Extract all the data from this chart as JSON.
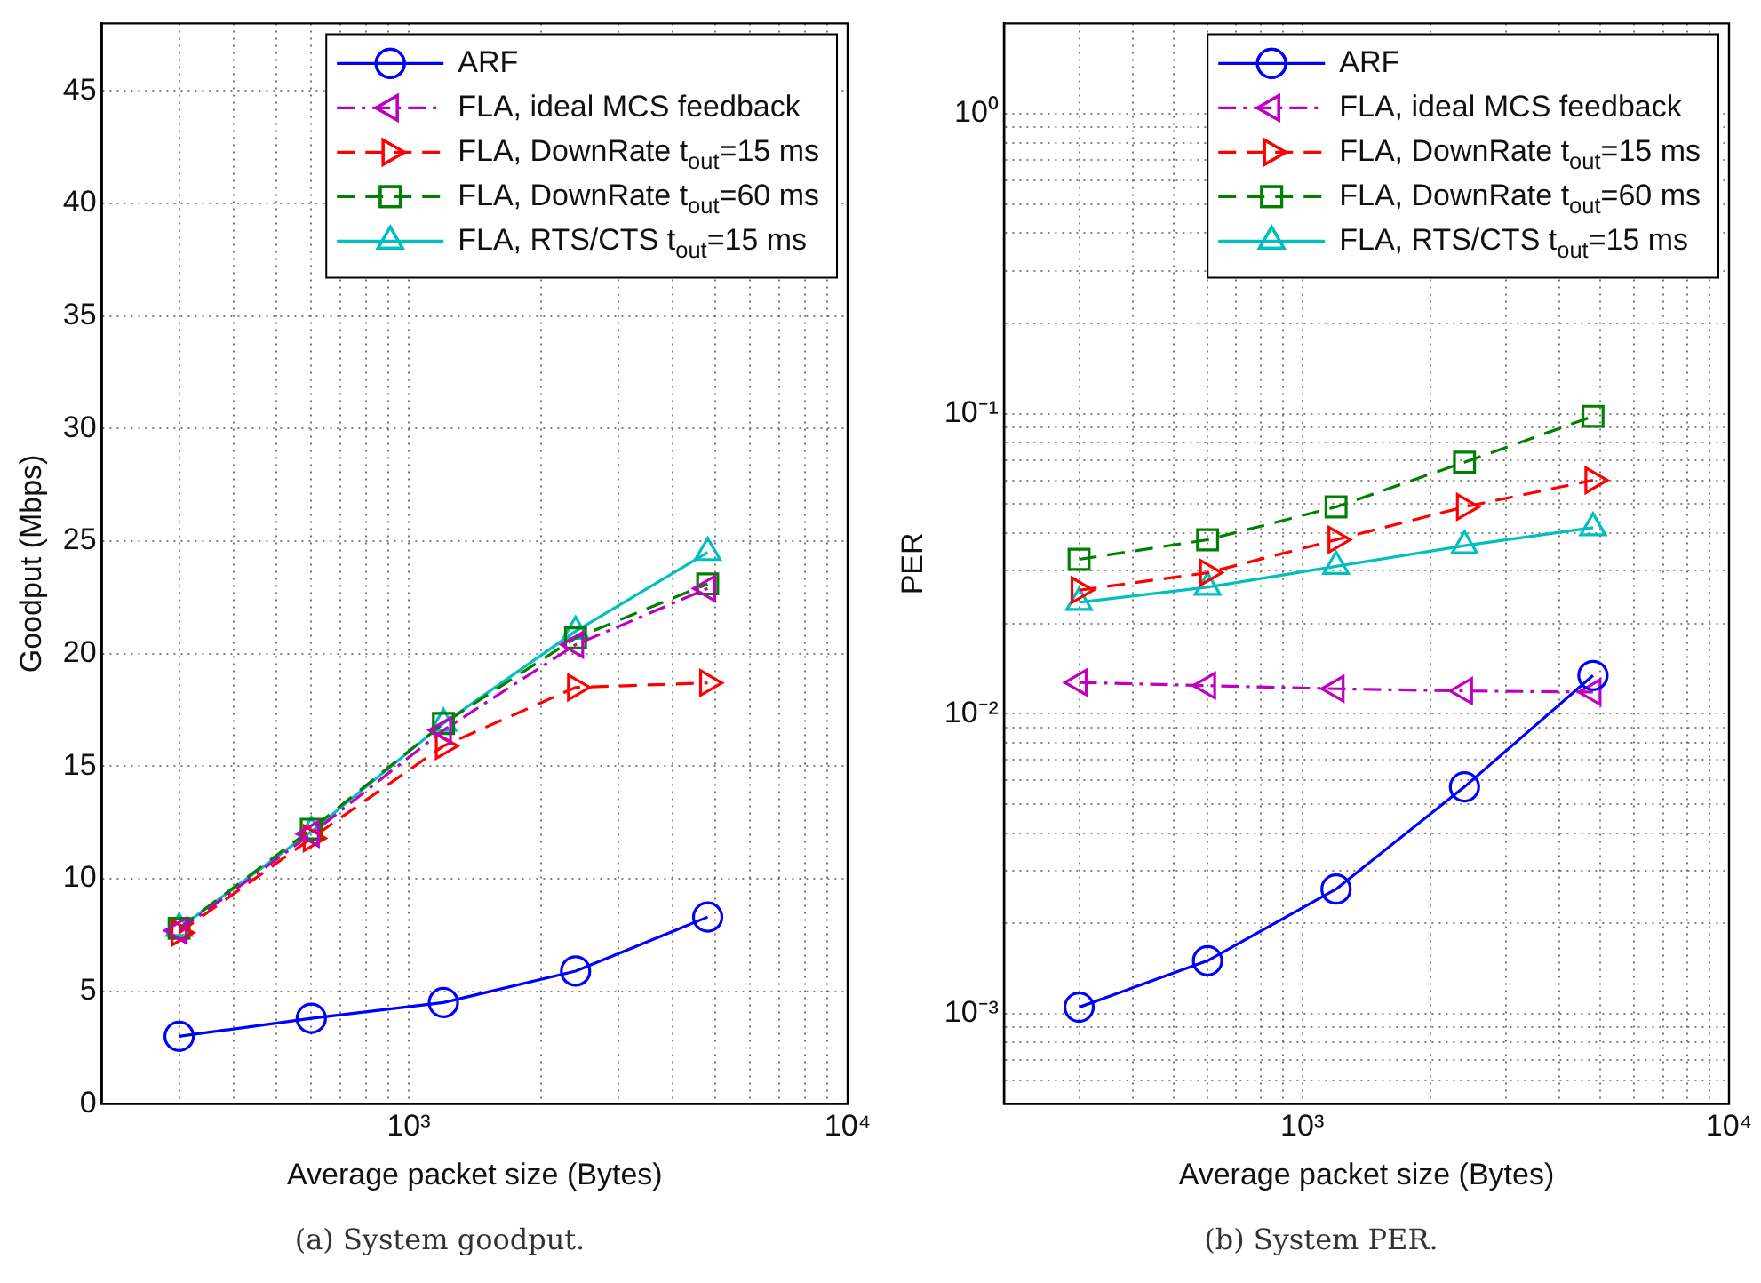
{
  "chart_data": [
    {
      "type": "line",
      "xlabel": "Average packet size (Bytes)",
      "ylabel": "Goodput (Mbps)",
      "annotations": [
        "(a) System goodput."
      ],
      "log": "x",
      "grid": true,
      "legend": "top right",
      "x": [
        300,
        600,
        1200,
        2400,
        4800
      ],
      "xlim": [
        200,
        10000
      ],
      "xticks": [
        {
          "value": 300,
          "label": null
        },
        {
          "value": 400,
          "label": null
        },
        {
          "value": 500,
          "label": null
        },
        {
          "value": 600,
          "label": null
        },
        {
          "value": 700,
          "label": null
        },
        {
          "value": 800,
          "label": null
        },
        {
          "value": 900,
          "label": null
        },
        {
          "value": 1000,
          "label": "10³"
        },
        {
          "value": 2000,
          "label": null
        },
        {
          "value": 3000,
          "label": null
        },
        {
          "value": 4000,
          "label": null
        },
        {
          "value": 5000,
          "label": null
        },
        {
          "value": 6000,
          "label": null
        },
        {
          "value": 7000,
          "label": null
        },
        {
          "value": 8000,
          "label": null
        },
        {
          "value": 9000,
          "label": null
        },
        {
          "value": 10000,
          "label": "10⁴"
        }
      ],
      "ylim": [
        0,
        48
      ],
      "yticks": [
        0,
        5,
        10,
        15,
        20,
        25,
        30,
        35,
        40,
        45
      ],
      "series": [
        {
          "name": "ARF",
          "color": "#0000ff",
          "marker": "circle",
          "line_style": "solid",
          "values": [
            3.0,
            3.8,
            4.5,
            5.9,
            8.3
          ]
        },
        {
          "name": "FLA, ideal MCS feedback",
          "color": "#bf00bf",
          "marker": "triangle-left",
          "line_style": "dashdot",
          "values": [
            7.7,
            12.0,
            16.6,
            20.4,
            22.9
          ]
        },
        {
          "name": "FLA, DownRate t$_{out}$=15 ms",
          "color": "#ff0000",
          "marker": "triangle-right",
          "line_style": "dashed",
          "values": [
            7.6,
            11.8,
            15.9,
            18.5,
            18.7
          ]
        },
        {
          "name": "FLA, DownRate t$_{out}$=60 ms",
          "color": "#008000",
          "marker": "square",
          "line_style": "dashed",
          "values": [
            7.8,
            12.2,
            16.9,
            20.7,
            23.1
          ]
        },
        {
          "name": "FLA, RTS/CTS t$_{out}$=15 ms",
          "color": "#00bfbf",
          "marker": "triangle",
          "line_style": "solid",
          "values": [
            7.8,
            12.1,
            16.9,
            21.0,
            24.5
          ]
        }
      ]
    },
    {
      "type": "line",
      "xlabel": "Average packet size (Bytes)",
      "ylabel": "PER",
      "annotations": [
        "(b) System PER."
      ],
      "log": "xy",
      "grid": true,
      "legend": "top right",
      "x": [
        300,
        600,
        1200,
        2400,
        4800
      ],
      "xlim": [
        200,
        10000
      ],
      "xticks": [
        {
          "value": 300,
          "label": null
        },
        {
          "value": 400,
          "label": null
        },
        {
          "value": 500,
          "label": null
        },
        {
          "value": 600,
          "label": null
        },
        {
          "value": 700,
          "label": null
        },
        {
          "value": 800,
          "label": null
        },
        {
          "value": 900,
          "label": null
        },
        {
          "value": 1000,
          "label": "10³"
        },
        {
          "value": 2000,
          "label": null
        },
        {
          "value": 3000,
          "label": null
        },
        {
          "value": 4000,
          "label": null
        },
        {
          "value": 5000,
          "label": null
        },
        {
          "value": 6000,
          "label": null
        },
        {
          "value": 7000,
          "label": null
        },
        {
          "value": 8000,
          "label": null
        },
        {
          "value": 9000,
          "label": null
        },
        {
          "value": 10000,
          "label": "10⁴"
        }
      ],
      "ylim": [
        0.0005,
        2
      ],
      "yticks": [
        {
          "value": 0.0006,
          "label": null
        },
        {
          "value": 0.0007,
          "label": null
        },
        {
          "value": 0.0008,
          "label": null
        },
        {
          "value": 0.0009,
          "label": null
        },
        {
          "value": 0.001,
          "label": "10⁻³"
        },
        {
          "value": 0.002,
          "label": null
        },
        {
          "value": 0.003,
          "label": null
        },
        {
          "value": 0.004,
          "label": null
        },
        {
          "value": 0.005,
          "label": null
        },
        {
          "value": 0.006,
          "label": null
        },
        {
          "value": 0.007,
          "label": null
        },
        {
          "value": 0.008,
          "label": null
        },
        {
          "value": 0.009,
          "label": null
        },
        {
          "value": 0.01,
          "label": "10⁻²"
        },
        {
          "value": 0.02,
          "label": null
        },
        {
          "value": 0.03,
          "label": null
        },
        {
          "value": 0.04,
          "label": null
        },
        {
          "value": 0.05,
          "label": null
        },
        {
          "value": 0.06,
          "label": null
        },
        {
          "value": 0.07,
          "label": null
        },
        {
          "value": 0.08,
          "label": null
        },
        {
          "value": 0.09,
          "label": null
        },
        {
          "value": 0.1,
          "label": "10⁻¹"
        },
        {
          "value": 0.2,
          "label": null
        },
        {
          "value": 0.3,
          "label": null
        },
        {
          "value": 0.4,
          "label": null
        },
        {
          "value": 0.5,
          "label": null
        },
        {
          "value": 0.6,
          "label": null
        },
        {
          "value": 0.7,
          "label": null
        },
        {
          "value": 0.8,
          "label": null
        },
        {
          "value": 0.9,
          "label": null
        },
        {
          "value": 1,
          "label": "10⁰"
        }
      ],
      "series": [
        {
          "name": "ARF",
          "color": "#0000ff",
          "marker": "circle",
          "line_style": "solid",
          "values": [
            0.00105,
            0.0015,
            0.0026,
            0.0057,
            0.0134
          ]
        },
        {
          "name": "FLA, ideal MCS feedback",
          "color": "#bf00bf",
          "marker": "triangle-left",
          "line_style": "dashdot",
          "values": [
            0.0127,
            0.0124,
            0.0121,
            0.0119,
            0.0118
          ]
        },
        {
          "name": "FLA, DownRate t$_{out}$=15 ms",
          "color": "#ff0000",
          "marker": "triangle-right",
          "line_style": "dashed",
          "values": [
            0.0258,
            0.0295,
            0.038,
            0.0489,
            0.06
          ]
        },
        {
          "name": "FLA, DownRate t$_{out}$=60 ms",
          "color": "#008000",
          "marker": "square",
          "line_style": "dashed",
          "values": [
            0.0327,
            0.038,
            0.0489,
            0.0689,
            0.098
          ]
        },
        {
          "name": "FLA, RTS/CTS t$_{out}$=15 ms",
          "color": "#00bfbf",
          "marker": "triangle",
          "line_style": "solid",
          "values": [
            0.0235,
            0.0264,
            0.031,
            0.0363,
            0.0417
          ]
        }
      ]
    }
  ]
}
